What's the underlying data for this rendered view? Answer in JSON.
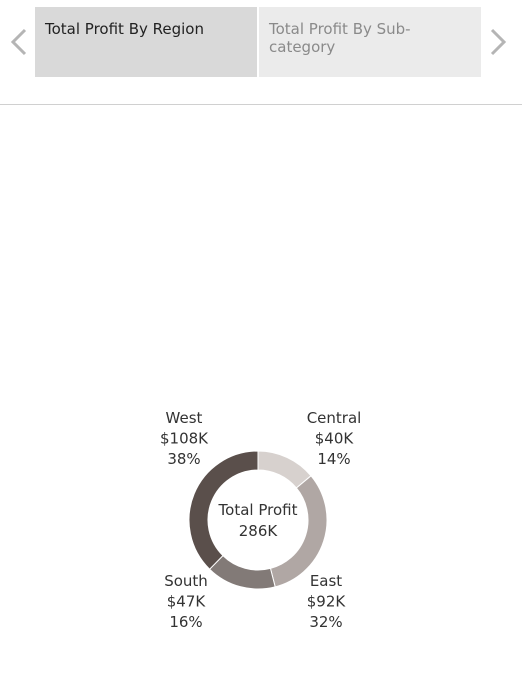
{
  "tabs": [
    {
      "label": "Total Profit By Region",
      "active": true
    },
    {
      "label": "Total Profit By Sub-category",
      "active": false
    }
  ],
  "icons": {
    "prev": "chevron-left-icon",
    "next": "chevron-right-icon"
  },
  "colors": {
    "West": "#5a4f4b",
    "Central": "#d7d1ce",
    "East": "#b0a7a4",
    "South": "#827a77"
  },
  "chart_data": {
    "type": "pie",
    "title": "Total Profit By Region",
    "center_label": "Total Profit",
    "center_value": "286K",
    "slices": [
      {
        "name": "Central",
        "value": 40,
        "value_label": "$40K",
        "percent_label": "14%"
      },
      {
        "name": "East",
        "value": 92,
        "value_label": "$92K",
        "percent_label": "32%"
      },
      {
        "name": "South",
        "value": 47,
        "value_label": "$47K",
        "percent_label": "16%"
      },
      {
        "name": "West",
        "value": 108,
        "value_label": "$108K",
        "percent_label": "38%"
      }
    ]
  }
}
